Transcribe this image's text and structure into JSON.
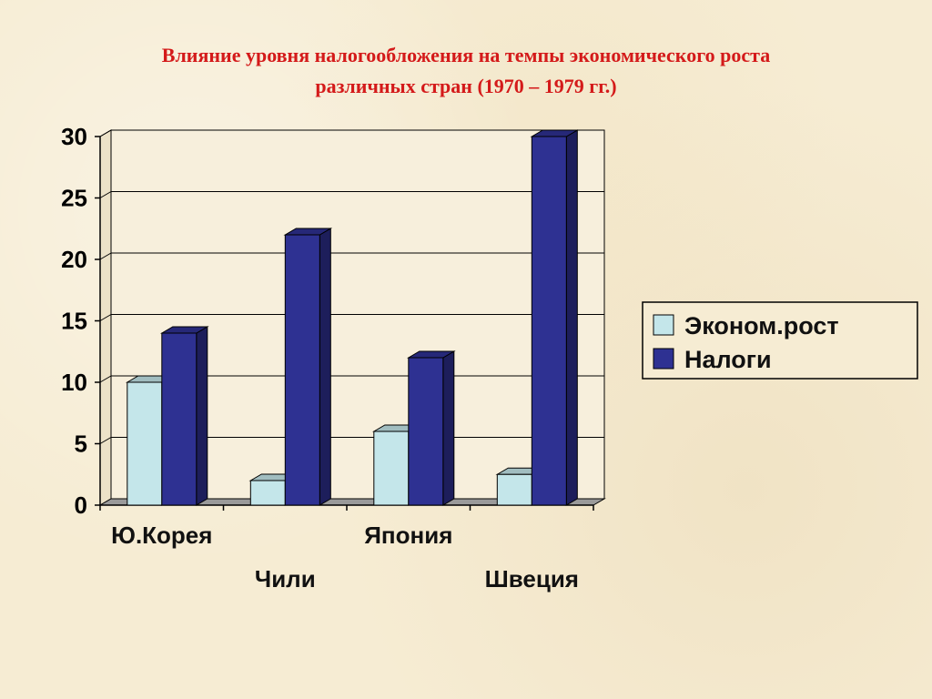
{
  "slide": {
    "title_line1": "Влияние уровня налогообложения на темпы экономического роста",
    "title_line2": "различных стран (1970 – 1979 гг.)"
  },
  "chart_data": {
    "type": "bar",
    "categories": [
      "Ю.Корея",
      "Чили",
      "Япония",
      "Швеция"
    ],
    "series": [
      {
        "name": "Эконом.рост",
        "values": [
          10,
          2,
          6,
          2.5
        ],
        "color": "#c4e6ea"
      },
      {
        "name": "Налоги",
        "values": [
          14,
          22,
          12,
          30
        ],
        "color": "#2e3192"
      }
    ],
    "ylim": [
      0,
      30
    ],
    "yticks": [
      0,
      5,
      10,
      15,
      20,
      25,
      30
    ],
    "grid": true,
    "legend_position": "right",
    "style": "3d-column"
  }
}
